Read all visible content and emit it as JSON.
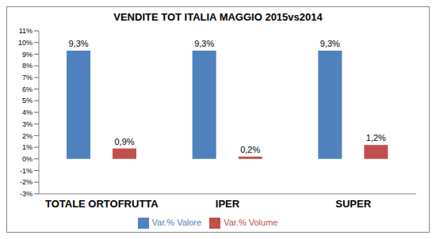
{
  "chart_data": {
    "type": "bar",
    "title": "VENDITE TOT ITALIA MAGGIO 2015vs2014",
    "categories": [
      "TOTALE ORTOFRUTTA",
      "IPER",
      "SUPER"
    ],
    "series": [
      {
        "name": "Var.% Valore",
        "color": "#4f81bd",
        "values": [
          9.3,
          9.3,
          9.3
        ],
        "value_labels": [
          "9,3%",
          "9,3%",
          "9,3%"
        ]
      },
      {
        "name": "Var.% Volume",
        "color": "#c0504d",
        "values": [
          0.9,
          0.2,
          1.2
        ],
        "value_labels": [
          "0,9%",
          "0,2%",
          "1,2%"
        ]
      }
    ],
    "ylim": [
      -3,
      11
    ],
    "yticks": [
      {
        "value": -3,
        "label": "-3%"
      },
      {
        "value": -2,
        "label": "-2%"
      },
      {
        "value": -1,
        "label": "-1%"
      },
      {
        "value": 0,
        "label": "0%"
      },
      {
        "value": 1,
        "label": "1%"
      },
      {
        "value": 2,
        "label": "2%"
      },
      {
        "value": 3,
        "label": "3%"
      },
      {
        "value": 4,
        "label": "4%"
      },
      {
        "value": 5,
        "label": "5%"
      },
      {
        "value": 6,
        "label": "6%"
      },
      {
        "value": 7,
        "label": "7%"
      },
      {
        "value": 8,
        "label": "8%"
      },
      {
        "value": 9,
        "label": "9%"
      },
      {
        "value": 10,
        "label": "10%"
      },
      {
        "value": 11,
        "label": "11%"
      }
    ],
    "grid": false,
    "legend": "bottom",
    "data_labels": true
  }
}
